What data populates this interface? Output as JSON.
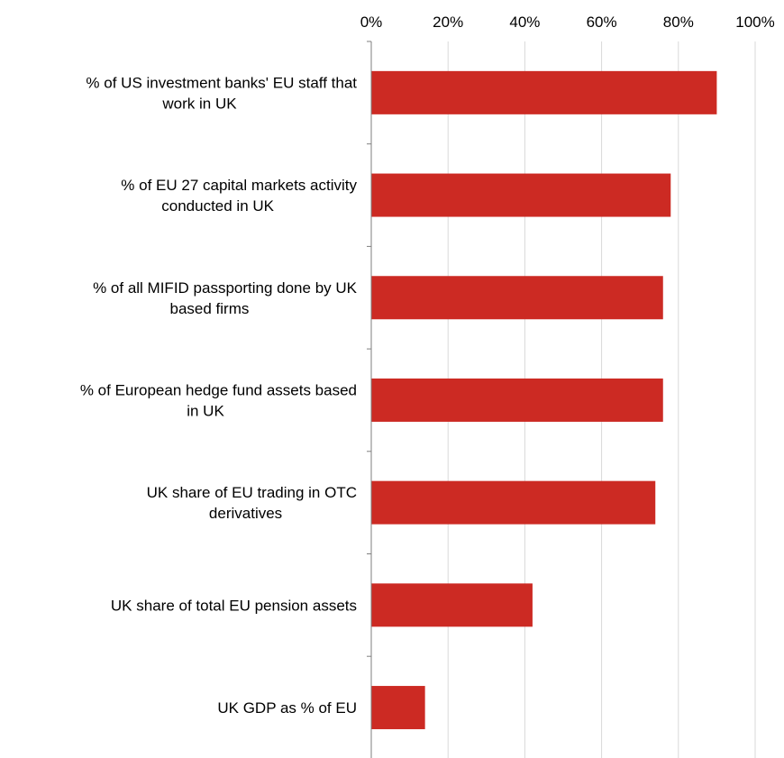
{
  "chart_data": {
    "type": "bar",
    "orientation": "horizontal",
    "title": "",
    "xlabel": "",
    "ylabel": "",
    "xlim": [
      0,
      100
    ],
    "x_ticks": [
      "0%",
      "20%",
      "40%",
      "60%",
      "80%",
      "100%"
    ],
    "x_tick_values": [
      0,
      20,
      40,
      60,
      80,
      100
    ],
    "x_axis_position": "top",
    "grid": true,
    "bar_color": "#cc2a23",
    "categories": [
      [
        "% of US investment banks' EU staff that",
        "work in UK"
      ],
      [
        "% of EU 27 capital markets activity",
        "conducted in UK"
      ],
      [
        "% of all MIFID passporting done by UK",
        "based firms"
      ],
      [
        "% of European hedge fund assets based",
        "in UK"
      ],
      [
        "UK share of EU trading in OTC",
        "derivatives"
      ],
      [
        "UK share of total EU pension assets"
      ],
      [
        "UK GDP as % of EU"
      ]
    ],
    "values": [
      90,
      78,
      76,
      76,
      74,
      42,
      14
    ]
  }
}
